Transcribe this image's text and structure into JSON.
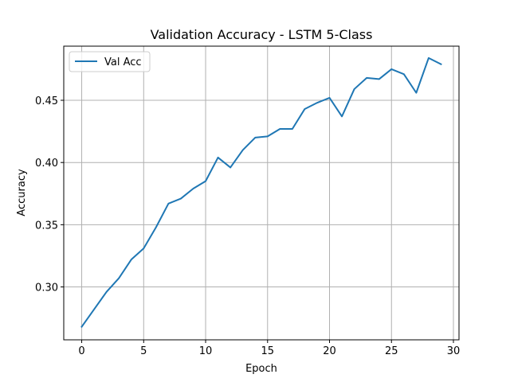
{
  "chart_data": {
    "type": "line",
    "title": "Validation Accuracy - LSTM 5-Class",
    "xlabel": "Epoch",
    "ylabel": "Accuracy",
    "xlim": [
      -1.45,
      30.45
    ],
    "ylim": [
      0.2575,
      0.4935
    ],
    "xticks": [
      0,
      5,
      10,
      15,
      20,
      25,
      30
    ],
    "yticks": [
      0.3,
      0.35,
      0.4,
      0.45
    ],
    "xtick_labels": [
      "0",
      "5",
      "10",
      "15",
      "20",
      "25",
      "30"
    ],
    "ytick_labels": [
      "0.30",
      "0.35",
      "0.40",
      "0.45"
    ],
    "grid": true,
    "legend_position": "top-left",
    "series": [
      {
        "name": "Val Acc",
        "color": "#1f77b4",
        "x": [
          0,
          1,
          2,
          3,
          4,
          5,
          6,
          7,
          8,
          9,
          10,
          11,
          12,
          13,
          14,
          15,
          16,
          17,
          18,
          19,
          20,
          21,
          22,
          23,
          24,
          25,
          26,
          27,
          28,
          29
        ],
        "y": [
          0.268,
          0.282,
          0.296,
          0.307,
          0.322,
          0.331,
          0.348,
          0.367,
          0.371,
          0.379,
          0.385,
          0.404,
          0.396,
          0.41,
          0.42,
          0.421,
          0.427,
          0.427,
          0.443,
          0.448,
          0.452,
          0.437,
          0.459,
          0.468,
          0.467,
          0.475,
          0.471,
          0.456,
          0.484,
          0.479
        ]
      }
    ]
  }
}
